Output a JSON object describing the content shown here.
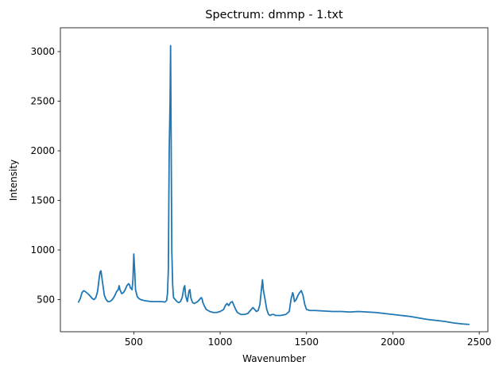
{
  "chart_data": {
    "type": "line",
    "title": "Spectrum: dmmp - 1.txt",
    "xlabel": "Wavenumber",
    "ylabel": "Intensity",
    "xlim": [
      75,
      2550
    ],
    "ylim": [
      176,
      3240
    ],
    "xticks": [
      500,
      1000,
      1500,
      2000,
      2500
    ],
    "yticks": [
      500,
      1000,
      1500,
      2000,
      2500,
      3000
    ],
    "grid": false,
    "line_color": "#1f77b4",
    "series": [
      {
        "x": [
          180,
          190,
          200,
          210,
          220,
          230,
          240,
          250,
          260,
          270,
          280,
          290,
          300,
          305,
          310,
          320,
          330,
          340,
          350,
          360,
          370,
          380,
          390,
          400,
          410,
          415,
          420,
          430,
          440,
          450,
          460,
          470,
          475,
          480,
          490,
          495,
          500,
          505,
          510,
          520,
          530,
          540,
          560,
          600,
          640,
          660,
          680,
          690,
          695,
          700,
          705,
          710,
          713,
          716,
          720,
          725,
          730,
          740,
          750,
          760,
          770,
          780,
          790,
          795,
          800,
          810,
          820,
          825,
          830,
          840,
          850,
          860,
          870,
          880,
          890,
          895,
          900,
          910,
          920,
          940,
          960,
          980,
          1000,
          1020,
          1030,
          1040,
          1050,
          1060,
          1070,
          1080,
          1090,
          1100,
          1120,
          1140,
          1160,
          1180,
          1190,
          1200,
          1210,
          1220,
          1230,
          1240,
          1245,
          1250,
          1260,
          1270,
          1280,
          1290,
          1300,
          1310,
          1320,
          1330,
          1350,
          1380,
          1400,
          1410,
          1420,
          1425,
          1430,
          1440,
          1450,
          1460,
          1470,
          1480,
          1490,
          1500,
          1520,
          1550,
          1600,
          1650,
          1700,
          1750,
          1800,
          1850,
          1900,
          1950,
          2000,
          2050,
          2100,
          2150,
          2200,
          2250,
          2300,
          2350,
          2400,
          2440
        ],
        "y": [
          475,
          510,
          570,
          590,
          580,
          565,
          550,
          530,
          510,
          500,
          520,
          580,
          720,
          780,
          790,
          660,
          540,
          500,
          480,
          480,
          490,
          510,
          540,
          580,
          600,
          640,
          600,
          560,
          570,
          600,
          640,
          660,
          650,
          620,
          600,
          700,
          960,
          800,
          600,
          530,
          510,
          500,
          490,
          480,
          480,
          480,
          475,
          490,
          560,
          800,
          2000,
          2500,
          3060,
          2200,
          1000,
          650,
          520,
          500,
          480,
          470,
          480,
          520,
          620,
          640,
          540,
          480,
          590,
          600,
          520,
          470,
          460,
          470,
          480,
          500,
          520,
          510,
          470,
          430,
          400,
          380,
          370,
          370,
          380,
          400,
          440,
          460,
          440,
          470,
          480,
          440,
          400,
          370,
          350,
          350,
          360,
          400,
          420,
          400,
          380,
          390,
          450,
          620,
          700,
          600,
          500,
          400,
          350,
          340,
          350,
          350,
          340,
          340,
          340,
          350,
          380,
          500,
          570,
          540,
          480,
          500,
          540,
          570,
          590,
          540,
          450,
          400,
          390,
          390,
          385,
          380,
          380,
          375,
          380,
          375,
          370,
          360,
          350,
          340,
          330,
          315,
          300,
          290,
          280,
          265,
          255,
          250
        ]
      }
    ]
  }
}
